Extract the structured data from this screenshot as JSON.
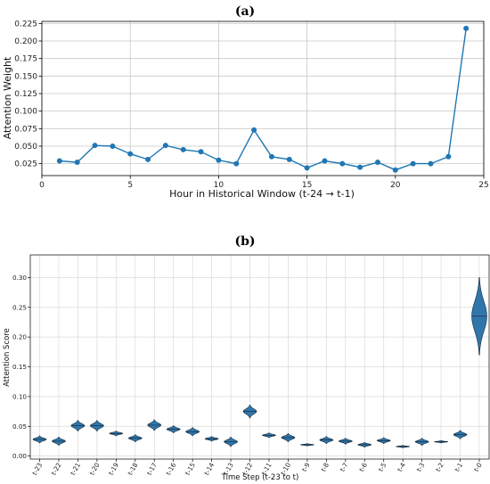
{
  "chart_data": [
    {
      "type": "line",
      "title": "(a)",
      "xlabel": "Hour in Historical Window (t-24 → t-1)",
      "ylabel": "Attention Weight",
      "xlim": [
        0,
        25
      ],
      "ylim": [
        0.008,
        0.228
      ],
      "xticks": [
        0,
        5,
        10,
        15,
        20,
        25
      ],
      "yticks": [
        0.025,
        0.05,
        0.075,
        0.1,
        0.125,
        0.15,
        0.175,
        0.2,
        0.225
      ],
      "grid": true,
      "color": "#1f77b4",
      "x": [
        1,
        2,
        3,
        4,
        5,
        6,
        7,
        8,
        9,
        10,
        11,
        12,
        13,
        14,
        15,
        16,
        17,
        18,
        19,
        20,
        21,
        22,
        23,
        24
      ],
      "y": [
        0.029,
        0.027,
        0.051,
        0.05,
        0.039,
        0.031,
        0.051,
        0.045,
        0.042,
        0.03,
        0.025,
        0.073,
        0.035,
        0.031,
        0.019,
        0.029,
        0.025,
        0.02,
        0.027,
        0.016,
        0.025,
        0.025,
        0.035,
        0.218
      ]
    },
    {
      "type": "violin",
      "title": "(b)",
      "xlabel": "Time Step (t-23 to t)",
      "ylabel": "Attention Score",
      "ylim": [
        -0.005,
        0.338
      ],
      "yticks": [
        0.0,
        0.05,
        0.1,
        0.15,
        0.2,
        0.25,
        0.3
      ],
      "grid": true,
      "color": "#2f77ab",
      "categories": [
        "t-23",
        "t-22",
        "t-21",
        "t-20",
        "t-19",
        "t-18",
        "t-17",
        "t-16",
        "t-15",
        "t-14",
        "t-13",
        "t-12",
        "t-11",
        "t-10",
        "t-9",
        "t-8",
        "t-7",
        "t-6",
        "t-5",
        "t-4",
        "t-3",
        "t-2",
        "t-1",
        "t-0"
      ],
      "values": [
        0.028,
        0.025,
        0.051,
        0.051,
        0.038,
        0.03,
        0.052,
        0.045,
        0.041,
        0.029,
        0.024,
        0.075,
        0.035,
        0.031,
        0.019,
        0.027,
        0.025,
        0.019,
        0.026,
        0.016,
        0.024,
        0.024,
        0.036,
        0.235
      ],
      "spread": [
        0.006,
        0.007,
        0.009,
        0.009,
        0.004,
        0.006,
        0.009,
        0.006,
        0.007,
        0.004,
        0.008,
        0.011,
        0.004,
        0.007,
        0.002,
        0.006,
        0.005,
        0.004,
        0.005,
        0.002,
        0.006,
        0.002,
        0.007,
        0.065
      ]
    }
  ]
}
